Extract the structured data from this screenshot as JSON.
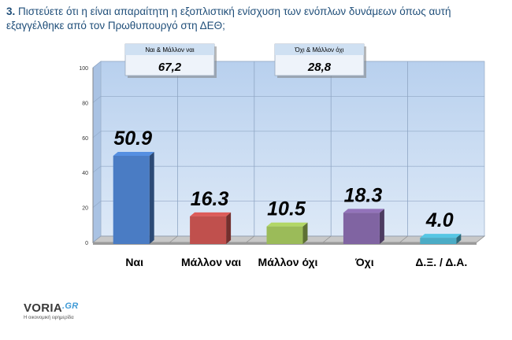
{
  "question": {
    "number": "3.",
    "text": "Πιστεύετε ότι η είναι απαραίτητη η εξοπλιστική ενίσχυση των ενόπλων δυνάμεων όπως αυτή εξαγγέλθηκε από τον Πρωθυπουργό στη ΔΕΘ;"
  },
  "summary_boxes": [
    {
      "label": "Ναι & Μάλλον ναι",
      "value": "67,2"
    },
    {
      "label": "Όχι & Μάλλον όχι",
      "value": "28,8"
    }
  ],
  "chart_data": {
    "type": "bar",
    "categories": [
      "Ναι",
      "Μάλλον ναι",
      "Μάλλον όχι",
      "Όχι",
      "Δ.Ξ. / Δ.Α."
    ],
    "values": [
      50.9,
      16.3,
      10.5,
      18.3,
      4.0
    ],
    "value_labels": [
      "50.9",
      "16.3",
      "10.5",
      "18.3",
      "4.0"
    ],
    "colors": [
      "#4a7cc4",
      "#c0504d",
      "#9bbb59",
      "#8064a2",
      "#4bacc6"
    ],
    "ylim": [
      0,
      100
    ],
    "yticks": [
      0,
      20,
      40,
      60,
      80,
      100
    ],
    "grid": true,
    "background_color": "#c9dcf1"
  },
  "logo": {
    "brand": "VORIA",
    "suffix": ".GR",
    "tagline": "Η οικονομική εφημερίδα"
  }
}
